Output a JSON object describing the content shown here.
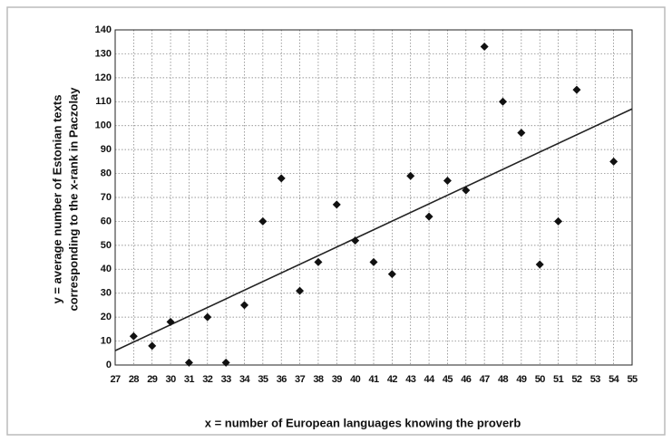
{
  "chart_data": {
    "type": "scatter",
    "xlabel": "x = number of European languages knowing the proverb",
    "ylabel": [
      "y = average number of Estonian texts",
      "corresponding to the x-rank in Paczolay"
    ],
    "x": [
      28,
      29,
      30,
      31,
      32,
      33,
      34,
      35,
      36,
      37,
      38,
      39,
      40,
      41,
      42,
      43,
      44,
      45,
      46,
      47,
      48,
      49,
      50,
      51,
      52,
      54
    ],
    "values": [
      12,
      8,
      18,
      1,
      20,
      1,
      25,
      60,
      78,
      31,
      43,
      67,
      52,
      43,
      38,
      79,
      62,
      77,
      73,
      133,
      110,
      97,
      42,
      60,
      115,
      85
    ],
    "color": "#111111",
    "trendline": {
      "x": [
        27,
        55
      ],
      "y": [
        6,
        107
      ]
    },
    "xlim": [
      27,
      55
    ],
    "xticks": [
      27,
      28,
      29,
      30,
      31,
      32,
      33,
      34,
      35,
      36,
      37,
      38,
      39,
      40,
      41,
      42,
      43,
      44,
      45,
      46,
      47,
      48,
      49,
      50,
      51,
      52,
      53,
      54,
      55
    ],
    "ylim": [
      0,
      140
    ],
    "yticks": [
      0,
      10,
      20,
      30,
      40,
      50,
      60,
      70,
      80,
      90,
      100,
      110,
      120,
      130,
      140
    ],
    "grid": true
  }
}
